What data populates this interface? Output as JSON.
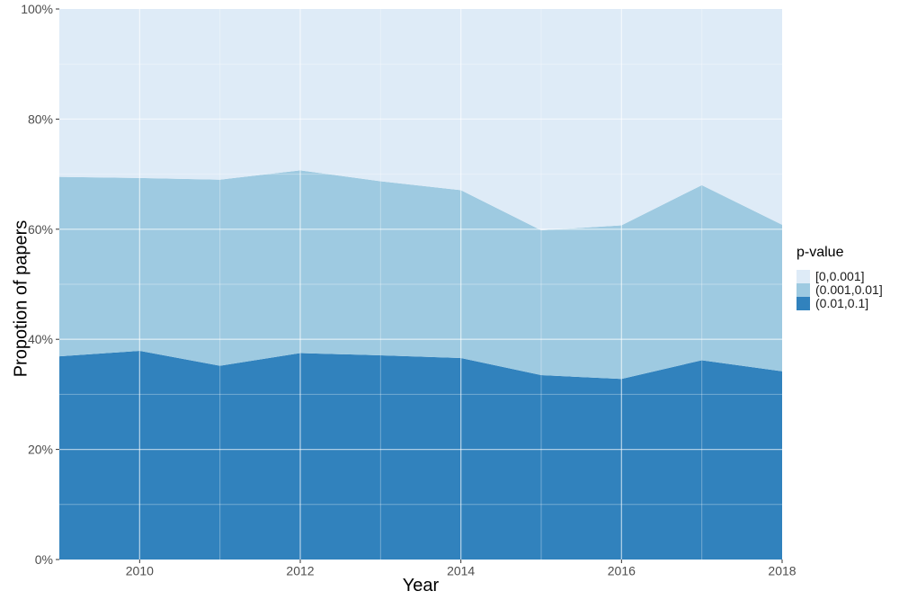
{
  "chart_data": {
    "type": "area",
    "stacked": true,
    "units": "percent",
    "title": "",
    "xlabel": "Year",
    "ylabel": "Propotion of papers",
    "legend_title": "p-value",
    "xlim": [
      2009,
      2018
    ],
    "ylim": [
      0,
      100
    ],
    "x": [
      2009,
      2010,
      2011,
      2012,
      2013,
      2014,
      2015,
      2016,
      2017,
      2018
    ],
    "series": [
      {
        "name": "(0.01,0.1]",
        "color": "#3182BD",
        "values": [
          36.9,
          37.9,
          35.2,
          37.5,
          37.1,
          36.6,
          33.5,
          32.8,
          36.2,
          34.2
        ]
      },
      {
        "name": "(0.001,0.01]",
        "color": "#9ECAE1",
        "values": [
          32.6,
          31.4,
          33.8,
          33.2,
          31.6,
          30.5,
          26.3,
          27.9,
          31.8,
          26.6
        ]
      },
      {
        "name": "[0,0.001]",
        "color": "#DEEBF7",
        "values": [
          30.5,
          30.7,
          31.0,
          29.3,
          31.3,
          32.9,
          40.2,
          39.3,
          32.0,
          39.2
        ]
      }
    ],
    "legend": {
      "position": "right",
      "items": [
        "[0,0.001]",
        "(0.001,0.01]",
        "(0.01,0.1]"
      ]
    },
    "x_ticks": [
      {
        "value": 2010,
        "label": "2010"
      },
      {
        "value": 2012,
        "label": "2012"
      },
      {
        "value": 2014,
        "label": "2014"
      },
      {
        "value": 2016,
        "label": "2016"
      },
      {
        "value": 2018,
        "label": "2018"
      }
    ],
    "y_ticks": [
      {
        "value": 0,
        "label": "0%"
      },
      {
        "value": 20,
        "label": "20%"
      },
      {
        "value": 40,
        "label": "40%"
      },
      {
        "value": 60,
        "label": "60%"
      },
      {
        "value": 80,
        "label": "80%"
      },
      {
        "value": 100,
        "label": "100%"
      }
    ],
    "grid": {
      "x_major": [
        2010,
        2012,
        2014,
        2016
      ],
      "x_minor": [
        2011,
        2013,
        2015,
        2017
      ],
      "y_major": [
        20,
        40,
        60,
        80
      ],
      "y_minor": [
        10,
        30,
        50,
        70,
        90
      ],
      "major_color": "rgba(255,255,255,0.60)",
      "minor_color": "rgba(255,255,255,0.32)"
    },
    "tick_color": "#333333",
    "tick_label_color": "#4d4d4d"
  }
}
